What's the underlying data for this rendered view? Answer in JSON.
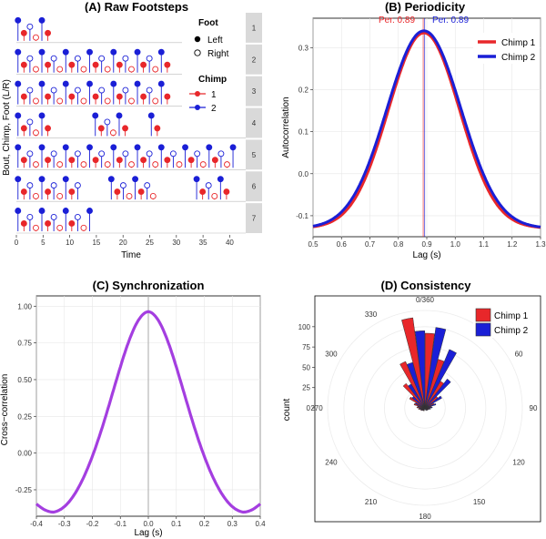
{
  "chart_data": [
    {
      "panel": "A",
      "type": "scatter",
      "title": "(A) Raw Footsteps",
      "xlabel": "Time",
      "ylabel": "Bout, Chimp, Foot (L/R)",
      "xlim": [
        0,
        43
      ],
      "xticks": [
        "0",
        "5",
        "10",
        "15",
        "20",
        "25",
        "30",
        "35",
        "40"
      ],
      "strips": [
        "1",
        "2",
        "3",
        "4",
        "5",
        "6",
        "7"
      ],
      "legend_foot": {
        "title": "Foot",
        "items": [
          "Left",
          "Right"
        ]
      },
      "legend_chimp": {
        "title": "Chimp",
        "items": [
          "1",
          "2"
        ]
      },
      "colors": {
        "chimp1": "#e8272a",
        "chimp2": "#1a1fd6"
      },
      "bouts": [
        {
          "end": 6.5,
          "segments": [
            [
              0,
              6.5
            ]
          ]
        },
        {
          "end": 28.5,
          "segments": [
            [
              0,
              28.5
            ]
          ]
        },
        {
          "end": 29.0,
          "segments": [
            [
              0,
              29.0
            ]
          ]
        },
        {
          "end": 27.5,
          "segments": [
            [
              0,
              6.0
            ],
            [
              14.5,
              21.5
            ],
            [
              25.0,
              27.5
            ]
          ]
        },
        {
          "end": 41.5,
          "segments": [
            [
              0,
              41.5
            ]
          ]
        },
        {
          "end": 39.5,
          "segments": [
            [
              0,
              12.5
            ],
            [
              17.5,
              26.0
            ],
            [
              33.5,
              39.5
            ]
          ]
        },
        {
          "end": 14.0,
          "segments": [
            [
              0,
              14.0
            ]
          ]
        }
      ]
    },
    {
      "panel": "B",
      "type": "line",
      "title": "(B) Periodicity",
      "xlabel": "Lag (s)",
      "ylabel": "Autocorrelation",
      "xlim": [
        0.5,
        1.3
      ],
      "ylim": [
        -0.15,
        0.37
      ],
      "xticks": [
        "0.5",
        "0.6",
        "0.7",
        "0.8",
        "0.9",
        "1.0",
        "1.1",
        "1.2",
        "1.3"
      ],
      "yticks": [
        "-0.1",
        "0.0",
        "0.1",
        "0.2",
        "0.3"
      ],
      "annotations": [
        {
          "text": "Per. 0.89",
          "color": "#e8272a"
        },
        {
          "text": "Per. 0.89",
          "color": "#1a1fd6"
        }
      ],
      "series": [
        {
          "name": "Chimp 1",
          "color": "#e8272a",
          "peak_x": 0.89,
          "peak_y": 0.335,
          "baseline": -0.13
        },
        {
          "name": "Chimp 2",
          "color": "#1a1fd6",
          "peak_x": 0.89,
          "peak_y": 0.34,
          "baseline": -0.13
        }
      ]
    },
    {
      "panel": "C",
      "type": "line",
      "title": "(C) Synchronization",
      "xlabel": "Lag (s)",
      "ylabel": "Cross−correlation",
      "xlim": [
        -0.4,
        0.4
      ],
      "ylim": [
        -0.43,
        1.07
      ],
      "xticks": [
        "-0.4",
        "-0.3",
        "-0.2",
        "-0.1",
        "0.0",
        "0.1",
        "0.2",
        "0.3",
        "0.4"
      ],
      "yticks": [
        "-0.25",
        "0.00",
        "0.25",
        "0.50",
        "0.75",
        "1.00"
      ],
      "series": [
        {
          "color": "#a43ee0",
          "peak_y": 0.97,
          "min_y": -0.41,
          "min_at": 0.34,
          "edge_y": -0.38
        }
      ]
    },
    {
      "panel": "D",
      "type": "bar",
      "polar": true,
      "title": "(D) Consistency",
      "ylabel": "count",
      "angle_labels": [
        "0/360",
        "30",
        "60",
        "90",
        "120",
        "150",
        "180",
        "210",
        "240",
        "270",
        "300",
        "330"
      ],
      "radial_ticks": [
        "0",
        "25",
        "50",
        "75",
        "100"
      ],
      "rmax": 120,
      "legend": [
        "Chimp 1",
        "Chimp 2"
      ],
      "colors": {
        "chimp1": "#e8272a",
        "chimp2": "#1a1fd6"
      },
      "bin_centers": [
        -157.5,
        -142.5,
        -127.5,
        -112.5,
        -97.5,
        -82.5,
        -67.5,
        -52.5,
        -37.5,
        -22.5,
        -7.5,
        7.5,
        22.5,
        37.5,
        52.5,
        67.5,
        82.5,
        97.5,
        112.5,
        127.5,
        142.5,
        157.5
      ],
      "chimp1": [
        4,
        4,
        5,
        6,
        8,
        10,
        14,
        22,
        38,
        62,
        112,
        92,
        62,
        38,
        20,
        12,
        8,
        6,
        5,
        4,
        4,
        3
      ],
      "chimp2": [
        3,
        4,
        5,
        6,
        7,
        9,
        13,
        20,
        34,
        58,
        95,
        100,
        78,
        45,
        24,
        14,
        9,
        7,
        5,
        4,
        4,
        3
      ]
    }
  ]
}
